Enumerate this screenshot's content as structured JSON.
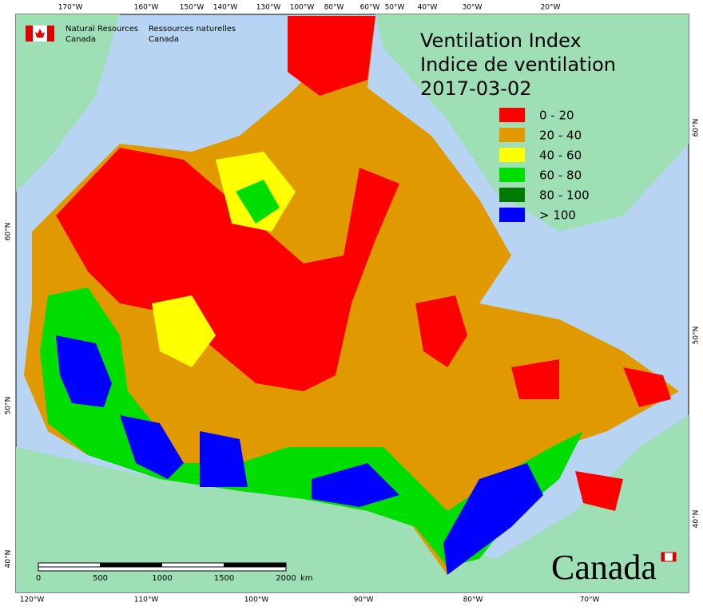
{
  "header": {
    "agency_en": [
      "Natural Resources",
      "Canada"
    ],
    "agency_fr": [
      "Ressources naturelles",
      "Canada"
    ]
  },
  "title": {
    "lines": [
      "Ventilation Index",
      "Indice de ventilation"
    ],
    "date": "2017-03-02"
  },
  "legend": [
    {
      "label": "0 - 20",
      "color": "#ff0000"
    },
    {
      "label": "20 - 40",
      "color": "#e09a00"
    },
    {
      "label": "40 - 60",
      "color": "#ffff00"
    },
    {
      "label": "60 - 80",
      "color": "#00dd00"
    },
    {
      "label": "80 - 100",
      "color": "#007a00"
    },
    {
      "label": "> 100",
      "color": "#0000ff"
    }
  ],
  "graticule": {
    "top": [
      "170°W",
      "160°W",
      "150°W",
      "140°W",
      "130°W",
      "100°W",
      "80°W",
      "60°W",
      "50°W",
      "40°W",
      "30°W",
      "20°W"
    ],
    "bottom": [
      "120°W",
      "110°W",
      "100°W",
      "90°W",
      "80°W",
      "70°W"
    ],
    "left": [
      "60°N",
      "50°N",
      "40°N"
    ],
    "right": [
      "60°N",
      "50°N",
      "40°N"
    ]
  },
  "scale_bar": {
    "ticks": [
      0,
      500,
      1000,
      1500,
      2000
    ],
    "unit": "km"
  },
  "wordmark": "Canada"
}
